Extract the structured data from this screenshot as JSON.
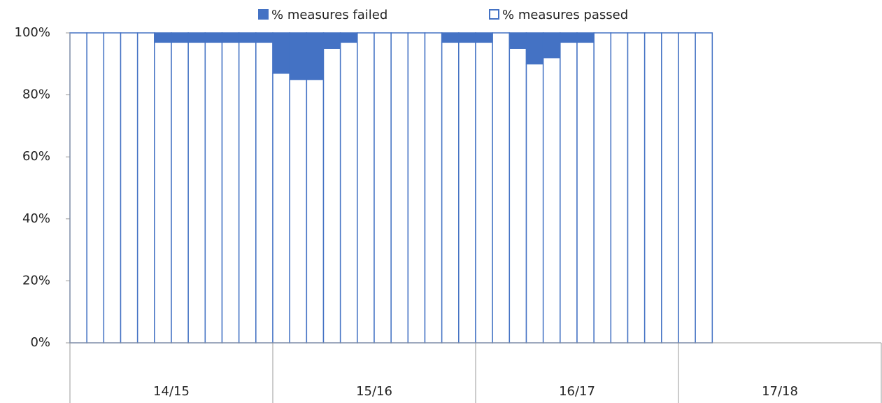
{
  "chart_data": {
    "type": "stacked_bar",
    "groups": [
      "14/15",
      "15/16",
      "16/17",
      "17/18"
    ],
    "series": [
      {
        "name": "% measures passed",
        "color": "#ffffff",
        "stroke": "#4472c4",
        "values": [
          100,
          100,
          100,
          100,
          100,
          97,
          97,
          97,
          97,
          97,
          97,
          97,
          87,
          85,
          85,
          95,
          97,
          100,
          100,
          100,
          100,
          100,
          97,
          97,
          97,
          100,
          95,
          90,
          92,
          97,
          97,
          100,
          100,
          100,
          100,
          100,
          100,
          100,
          null,
          null,
          null,
          null,
          null,
          null,
          null,
          null,
          null,
          null
        ]
      },
      {
        "name": "% measures failed",
        "color": "#4472c4",
        "stroke": "#4472c4",
        "values": [
          0,
          0,
          0,
          0,
          0,
          3,
          3,
          3,
          3,
          3,
          3,
          3,
          13,
          15,
          15,
          5,
          3,
          0,
          0,
          0,
          0,
          0,
          3,
          3,
          3,
          0,
          5,
          10,
          8,
          3,
          3,
          0,
          0,
          0,
          0,
          0,
          0,
          0,
          null,
          null,
          null,
          null,
          null,
          null,
          null,
          null,
          null,
          null
        ]
      }
    ],
    "ylim": [
      0,
      100
    ],
    "yticks": [
      {
        "value": 0,
        "label": "0%"
      },
      {
        "value": 20,
        "label": "20%"
      },
      {
        "value": 40,
        "label": "40%"
      },
      {
        "value": 60,
        "label": "60%"
      },
      {
        "value": 80,
        "label": "80%"
      },
      {
        "value": 100,
        "label": "100%"
      }
    ],
    "grid": false,
    "legend": "top"
  }
}
